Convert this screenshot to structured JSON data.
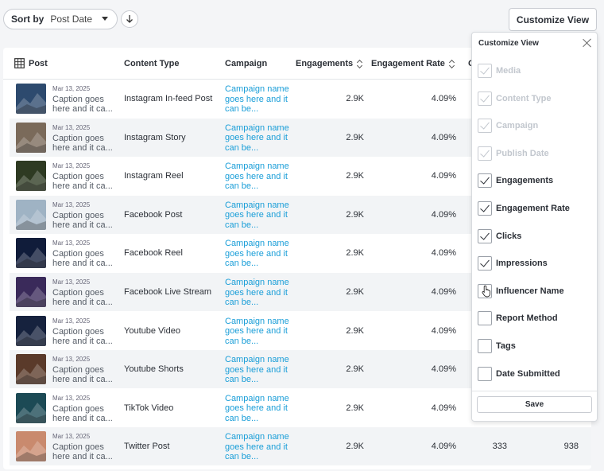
{
  "toolbar": {
    "sort_label": "Sort by",
    "sort_value": "Post Date",
    "customize_label": "Customize View"
  },
  "table": {
    "columns": {
      "post": "Post",
      "content_type": "Content Type",
      "campaign": "Campaign",
      "engagements": "Engagements",
      "engagement_rate": "Engagement Rate",
      "clicks_partial": "C"
    },
    "rows": [
      {
        "date": "Mar 13, 2025",
        "caption": "Caption goes here and it ca...",
        "content_type": "Instagram In-feed Post",
        "campaign": "Campaign name goes here and it can be...",
        "engagements": "2.9K",
        "rate": "4.09%",
        "clicks": "",
        "impressions": "",
        "thumb": "#2d4a6e"
      },
      {
        "date": "Mar 13, 2025",
        "caption": "Caption goes here and it ca...",
        "content_type": "Instagram Story",
        "campaign": "Campaign name goes here and it can be...",
        "engagements": "2.9K",
        "rate": "4.09%",
        "clicks": "",
        "impressions": "",
        "thumb": "#7a6a5a"
      },
      {
        "date": "Mar 13, 2025",
        "caption": "Caption goes here and it ca...",
        "content_type": "Instagram Reel",
        "campaign": "Campaign name goes here and it can be...",
        "engagements": "2.9K",
        "rate": "4.09%",
        "clicks": "",
        "impressions": "",
        "thumb": "#2e3a22"
      },
      {
        "date": "Mar 13, 2025",
        "caption": "Caption goes here and it ca...",
        "content_type": "Facebook Post",
        "campaign": "Campaign name goes here and it can be...",
        "engagements": "2.9K",
        "rate": "4.09%",
        "clicks": "",
        "impressions": "",
        "thumb": "#9fb3c4"
      },
      {
        "date": "Mar 13, 2025",
        "caption": "Caption goes here and it ca...",
        "content_type": "Facebook Reel",
        "campaign": "Campaign name goes here and it can be...",
        "engagements": "2.9K",
        "rate": "4.09%",
        "clicks": "",
        "impressions": "",
        "thumb": "#101c3a"
      },
      {
        "date": "Mar 13, 2025",
        "caption": "Caption goes here and it ca...",
        "content_type": "Facebook Live Stream",
        "campaign": "Campaign name goes here and it can be...",
        "engagements": "2.9K",
        "rate": "4.09%",
        "clicks": "",
        "impressions": "",
        "thumb": "#3a2a5a"
      },
      {
        "date": "Mar 13, 2025",
        "caption": "Caption goes here and it ca...",
        "content_type": "Youtube Video",
        "campaign": "Campaign name goes here and it can be...",
        "engagements": "2.9K",
        "rate": "4.09%",
        "clicks": "",
        "impressions": "",
        "thumb": "#16223e"
      },
      {
        "date": "Mar 13, 2025",
        "caption": "Caption goes here and it ca...",
        "content_type": "Youtube Shorts",
        "campaign": "Campaign name goes here and it can be...",
        "engagements": "2.9K",
        "rate": "4.09%",
        "clicks": "",
        "impressions": "",
        "thumb": "#5a3a2a"
      },
      {
        "date": "Mar 13, 2025",
        "caption": "Caption goes here and it ca...",
        "content_type": "TikTok Video",
        "campaign": "Campaign name goes here and it can be...",
        "engagements": "2.9K",
        "rate": "4.09%",
        "clicks": "",
        "impressions": "",
        "thumb": "#1c4a55"
      },
      {
        "date": "Mar 13, 2025",
        "caption": "Caption goes here and it ca...",
        "content_type": "Twitter Post",
        "campaign": "Campaign name goes here and it can be...",
        "engagements": "2.9K",
        "rate": "4.09%",
        "clicks": "333",
        "impressions": "938",
        "thumb": "#c98a6e"
      }
    ]
  },
  "panel": {
    "title": "Customize View",
    "options": [
      {
        "label": "Media",
        "checked": true,
        "disabled": true
      },
      {
        "label": "Content Type",
        "checked": true,
        "disabled": true
      },
      {
        "label": "Campaign",
        "checked": true,
        "disabled": true
      },
      {
        "label": "Publish Date",
        "checked": true,
        "disabled": true
      },
      {
        "label": "Engagements",
        "checked": true,
        "disabled": false
      },
      {
        "label": "Engagement Rate",
        "checked": true,
        "disabled": false
      },
      {
        "label": "Clicks",
        "checked": true,
        "disabled": false
      },
      {
        "label": "Impressions",
        "checked": true,
        "disabled": false
      },
      {
        "label": "Influencer Name",
        "checked": false,
        "disabled": false
      },
      {
        "label": "Report Method",
        "checked": false,
        "disabled": false
      },
      {
        "label": "Tags",
        "checked": false,
        "disabled": false
      },
      {
        "label": "Date Submitted",
        "checked": false,
        "disabled": false
      }
    ],
    "save_label": "Save"
  },
  "icons": {
    "sort_direction": "arrow-down-icon",
    "grid": "grid-icon",
    "close": "close-icon",
    "cursor": "hand-pointer-icon"
  }
}
